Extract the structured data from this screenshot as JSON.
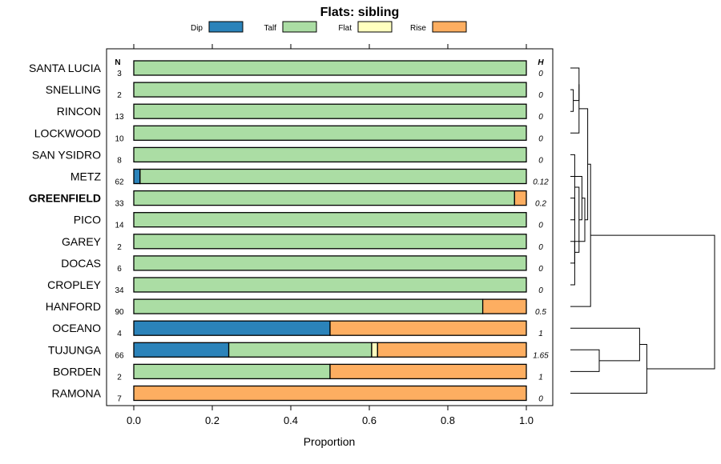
{
  "chart_data": {
    "type": "bar",
    "orientation": "horizontal",
    "stacked": true,
    "title": "Flats: sibling",
    "xlabel": "Proportion",
    "xlim": [
      0,
      1
    ],
    "x_ticks": [
      "0.0",
      "0.2",
      "0.4",
      "0.6",
      "0.8",
      "1.0"
    ],
    "n_header": "N",
    "h_header": "H",
    "legend": [
      {
        "name": "Dip",
        "color": "#2b83ba"
      },
      {
        "name": "Talf",
        "color": "#abdda4"
      },
      {
        "name": "Flat",
        "color": "#ffffbf"
      },
      {
        "name": "Rise",
        "color": "#fdae61"
      }
    ],
    "rows": [
      {
        "label": "SANTA LUCIA",
        "n": "3",
        "h": "0",
        "bold": false,
        "values": [
          0,
          1,
          0,
          0
        ]
      },
      {
        "label": "SNELLING",
        "n": "2",
        "h": "0",
        "bold": false,
        "values": [
          0,
          1,
          0,
          0
        ]
      },
      {
        "label": "RINCON",
        "n": "13",
        "h": "0",
        "bold": false,
        "values": [
          0,
          1,
          0,
          0
        ]
      },
      {
        "label": "LOCKWOOD",
        "n": "10",
        "h": "0",
        "bold": false,
        "values": [
          0,
          1,
          0,
          0
        ]
      },
      {
        "label": "SAN YSIDRO",
        "n": "8",
        "h": "0",
        "bold": false,
        "values": [
          0,
          1,
          0,
          0
        ]
      },
      {
        "label": "METZ",
        "n": "62",
        "h": "0.12",
        "bold": false,
        "values": [
          0.016,
          0.984,
          0,
          0
        ]
      },
      {
        "label": "GREENFIELD",
        "n": "33",
        "h": "0.2",
        "bold": true,
        "values": [
          0,
          0.97,
          0,
          0.03
        ]
      },
      {
        "label": "PICO",
        "n": "14",
        "h": "0",
        "bold": false,
        "values": [
          0,
          1,
          0,
          0
        ]
      },
      {
        "label": "GAREY",
        "n": "2",
        "h": "0",
        "bold": false,
        "values": [
          0,
          1,
          0,
          0
        ]
      },
      {
        "label": "DOCAS",
        "n": "6",
        "h": "0",
        "bold": false,
        "values": [
          0,
          1,
          0,
          0
        ]
      },
      {
        "label": "CROPLEY",
        "n": "34",
        "h": "0",
        "bold": false,
        "values": [
          0,
          1,
          0,
          0
        ]
      },
      {
        "label": "HANFORD",
        "n": "90",
        "h": "0.5",
        "bold": false,
        "values": [
          0,
          0.889,
          0,
          0.111
        ]
      },
      {
        "label": "OCEANO",
        "n": "4",
        "h": "1",
        "bold": false,
        "values": [
          0.5,
          0,
          0,
          0.5
        ]
      },
      {
        "label": "TUJUNGA",
        "n": "66",
        "h": "1.65",
        "bold": false,
        "values": [
          0.242,
          0.364,
          0.015,
          0.379
        ]
      },
      {
        "label": "BORDEN",
        "n": "2",
        "h": "1",
        "bold": false,
        "values": [
          0,
          0.5,
          0,
          0.5
        ]
      },
      {
        "label": "RAMONA",
        "n": "7",
        "h": "0",
        "bold": false,
        "values": [
          0,
          0,
          0,
          1
        ]
      }
    ],
    "dendrogram": {
      "note": "tree merges in units of row order and relative height (0 = leaves, 1 = root)",
      "merges": [
        {
          "a": 1,
          "b": 2,
          "h": 0.02
        },
        {
          "a": "m0",
          "b": 0,
          "h": 0.06
        },
        {
          "a": "m1",
          "b": 3,
          "h": 0.06
        },
        {
          "a": 4,
          "b": 7,
          "h": 0.03
        },
        {
          "a": 8,
          "b": 9,
          "h": 0.03
        },
        {
          "a": 6,
          "b": 10,
          "h": 0.03
        },
        {
          "a": "m3",
          "b": "m4",
          "h": 0.06
        },
        {
          "a": "m6",
          "b": 5,
          "h": 0.08
        },
        {
          "a": "m7",
          "b": "m5",
          "h": 0.1
        },
        {
          "a": "m8",
          "b": "m2",
          "h": 0.12
        },
        {
          "a": "m9",
          "b": 11,
          "h": 0.14
        },
        {
          "a": 13,
          "b": 14,
          "h": 0.2
        },
        {
          "a": "m11",
          "b": 12,
          "h": 0.48
        },
        {
          "a": "m12",
          "b": 15,
          "h": 0.53
        },
        {
          "a": "m10",
          "b": "m13",
          "h": 1.0
        }
      ]
    }
  }
}
